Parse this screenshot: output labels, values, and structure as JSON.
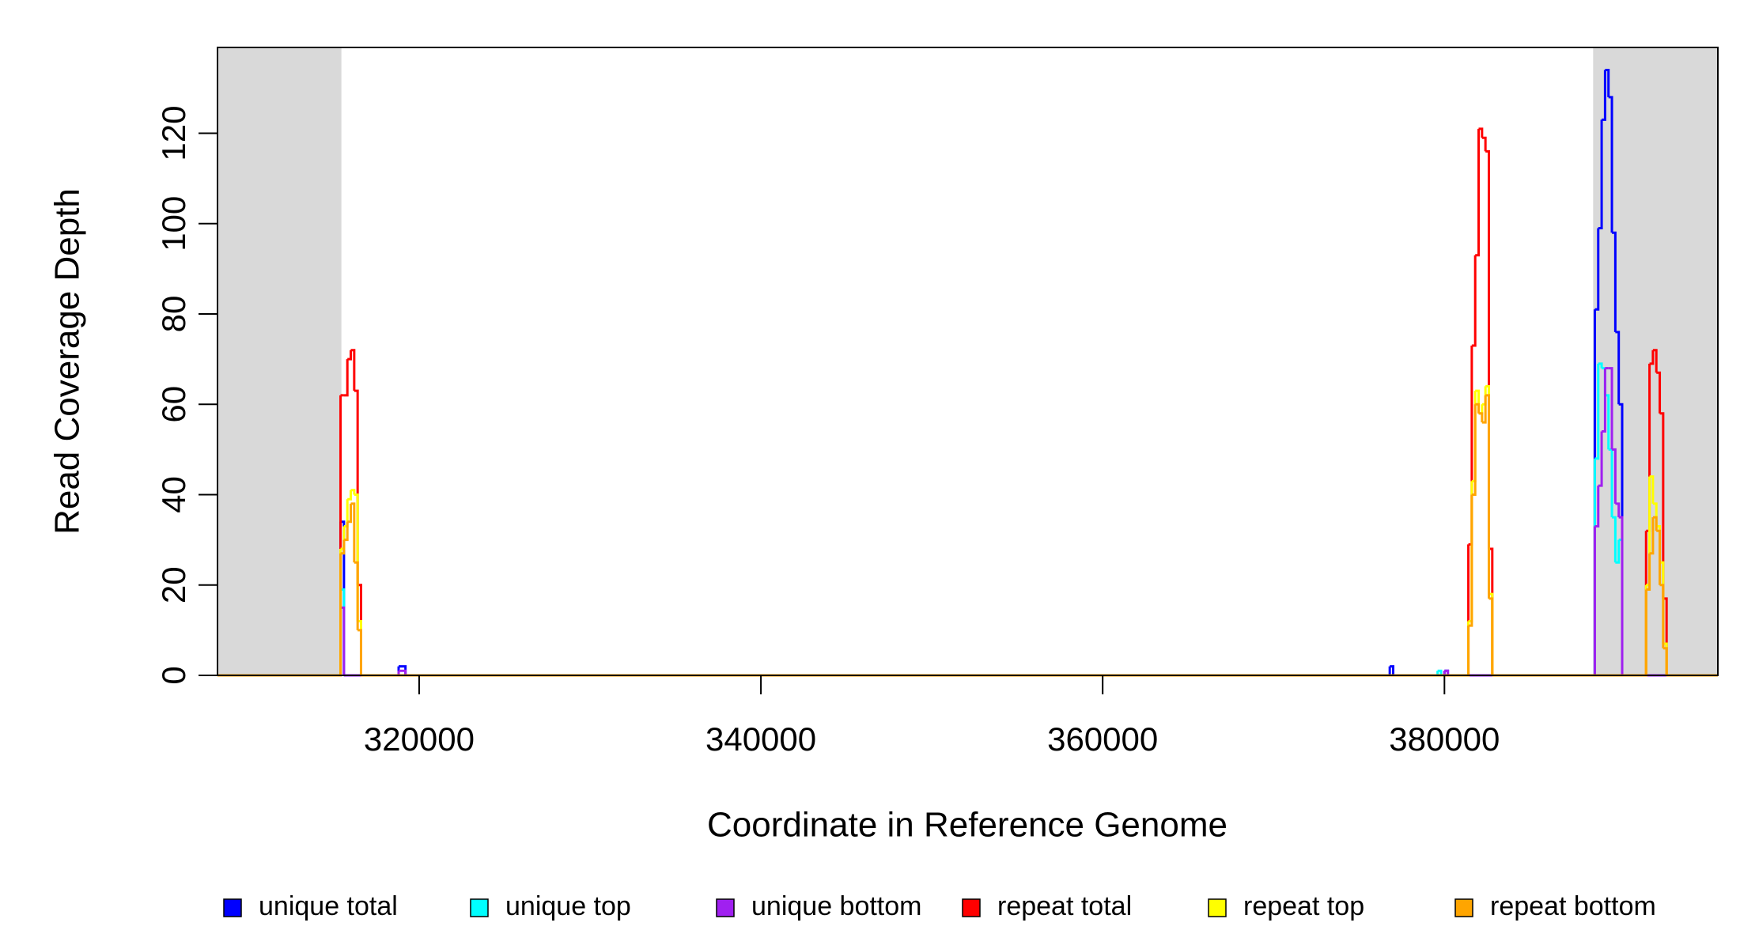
{
  "chart_data": {
    "type": "step",
    "x_label": "Coordinate in Reference Genome",
    "y_label": "Read Coverage Depth",
    "xlim": [
      308200,
      396000
    ],
    "ylim": [
      0,
      139
    ],
    "xticks": [
      320000,
      340000,
      360000,
      380000
    ],
    "yticks": [
      0,
      20,
      40,
      60,
      80,
      100,
      120
    ],
    "shaded_regions": [
      [
        308200,
        315450
      ],
      [
        388700,
        396000
      ]
    ],
    "shade_color": "#d9d9d9",
    "x": [
      308200,
      315400,
      315600,
      315800,
      316000,
      316200,
      316400,
      316600,
      316800,
      318800,
      319200,
      376800,
      377000,
      379600,
      379800,
      380000,
      380200,
      381200,
      381400,
      381600,
      381800,
      382000,
      382200,
      382400,
      382600,
      382800,
      388800,
      389000,
      389200,
      389400,
      389600,
      389800,
      390000,
      390200,
      390400,
      391800,
      392000,
      392200,
      392400,
      392600,
      392800,
      393000,
      393200,
      396000
    ],
    "series": [
      {
        "name": "unique total",
        "color": "#0000ff",
        "values": [
          0,
          34,
          0,
          0,
          0,
          0,
          0,
          0,
          0,
          2,
          0,
          2,
          0,
          0,
          0,
          1,
          0,
          0,
          0,
          0,
          0,
          0,
          0,
          0,
          0,
          0,
          81,
          99,
          123,
          134,
          128,
          98,
          76,
          60,
          0,
          0,
          0,
          0,
          0,
          0,
          0,
          0,
          0,
          0
        ]
      },
      {
        "name": "unique top",
        "color": "#00ffff",
        "values": [
          0,
          19,
          0,
          0,
          0,
          0,
          0,
          0,
          0,
          0,
          0,
          0,
          0,
          1,
          0,
          0,
          0,
          0,
          0,
          0,
          0,
          0,
          0,
          0,
          0,
          0,
          48,
          69,
          68,
          62,
          50,
          35,
          25,
          30,
          0,
          0,
          0,
          0,
          0,
          0,
          0,
          0,
          0,
          0
        ]
      },
      {
        "name": "unique bottom",
        "color": "#a020f0",
        "values": [
          0,
          15,
          0,
          0,
          0,
          0,
          0,
          0,
          0,
          1,
          0,
          0,
          0,
          0,
          0,
          1,
          0,
          0,
          0,
          0,
          0,
          0,
          0,
          0,
          0,
          0,
          33,
          42,
          54,
          68,
          68,
          50,
          38,
          35,
          0,
          0,
          0,
          0,
          0,
          0,
          0,
          0,
          0,
          0
        ]
      },
      {
        "name": "repeat total",
        "color": "#ff0000",
        "values": [
          0,
          62,
          62,
          70,
          72,
          63,
          20,
          0,
          0,
          0,
          0,
          0,
          0,
          0,
          0,
          0,
          0,
          0,
          29,
          73,
          93,
          121,
          119,
          116,
          28,
          0,
          0,
          0,
          0,
          0,
          0,
          0,
          0,
          0,
          0,
          32,
          69,
          72,
          67,
          58,
          17,
          0,
          0,
          0
        ]
      },
      {
        "name": "repeat top",
        "color": "#ffff00",
        "values": [
          0,
          28,
          33,
          39,
          41,
          40,
          12,
          0,
          0,
          0,
          0,
          0,
          0,
          0,
          0,
          0,
          0,
          0,
          12,
          43,
          63,
          58,
          60,
          64,
          18,
          0,
          0,
          0,
          0,
          0,
          0,
          0,
          0,
          0,
          0,
          20,
          44,
          38,
          33,
          25,
          7,
          0,
          0,
          0
        ]
      },
      {
        "name": "repeat bottom",
        "color": "#ffa500",
        "values": [
          0,
          27,
          30,
          34,
          38,
          25,
          10,
          0,
          0,
          0,
          0,
          0,
          0,
          0,
          0,
          0,
          0,
          0,
          11,
          40,
          60,
          58,
          56,
          62,
          17,
          0,
          0,
          0,
          0,
          0,
          0,
          0,
          0,
          0,
          0,
          19,
          27,
          35,
          32,
          20,
          6,
          0,
          0,
          0
        ]
      }
    ]
  }
}
